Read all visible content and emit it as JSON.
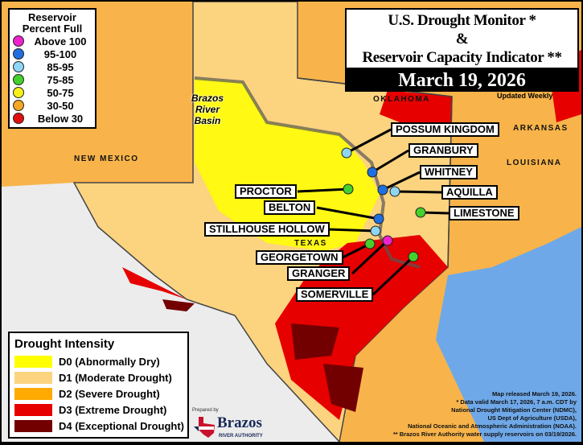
{
  "title": {
    "line1": "U.S. Drought Monitor *",
    "line2": "&",
    "line3": "Reservoir Capacity Indicator **",
    "date": "March 19, 2026",
    "updated": "Updated Weekly"
  },
  "reservoir_legend": {
    "title_line1": "Reservoir",
    "title_line2": "Percent Full",
    "items": [
      {
        "label": "Above 100",
        "color": "#ee22cc"
      },
      {
        "label": "95-100",
        "color": "#1f6fe0"
      },
      {
        "label": "85-95",
        "color": "#8fd6f5"
      },
      {
        "label": "75-85",
        "color": "#44d12c"
      },
      {
        "label": "50-75",
        "color": "#f5f01a"
      },
      {
        "label": "30-50",
        "color": "#f5a623"
      },
      {
        "label": "Below 30",
        "color": "#e01010"
      }
    ]
  },
  "drought_legend": {
    "title": "Drought Intensity",
    "items": [
      {
        "label": "D0 (Abnormally Dry)",
        "color": "#ffff00"
      },
      {
        "label": "D1 (Moderate Drought)",
        "color": "#fcd37f"
      },
      {
        "label": "D2 (Severe Drought)",
        "color": "#ffaa00"
      },
      {
        "label": "D3 (Extreme Drought)",
        "color": "#e60000"
      },
      {
        "label": "D4 (Exceptional Drought)",
        "color": "#730000"
      }
    ]
  },
  "geography": {
    "new_mexico": "NEW MEXICO",
    "oklahoma": "OKLAHOMA",
    "arkansas": "ARKANSAS",
    "louisiana": "LOUISIANA",
    "texas": "TEXAS",
    "basin_line1": "Brazos",
    "basin_line2": "River",
    "basin_line3": "Basin"
  },
  "reservoirs": [
    {
      "name": "POSSUM KINGDOM",
      "level": "85-95",
      "color": "#8fd6f5"
    },
    {
      "name": "GRANBURY",
      "level": "95-100",
      "color": "#1f6fe0"
    },
    {
      "name": "WHITNEY",
      "level": "95-100",
      "color": "#1f6fe0"
    },
    {
      "name": "AQUILLA",
      "level": "85-95",
      "color": "#8fd6f5"
    },
    {
      "name": "LIMESTONE",
      "level": "75-85",
      "color": "#44d12c"
    },
    {
      "name": "PROCTOR",
      "level": "75-85",
      "color": "#44d12c"
    },
    {
      "name": "BELTON",
      "level": "95-100",
      "color": "#1f6fe0"
    },
    {
      "name": "STILLHOUSE HOLLOW",
      "level": "85-95",
      "color": "#8fd6f5"
    },
    {
      "name": "GEORGETOWN",
      "level": "75-85",
      "color": "#44d12c"
    },
    {
      "name": "GRANGER",
      "level": "Above 100",
      "color": "#ee22cc"
    },
    {
      "name": "SOMERVILLE",
      "level": "75-85",
      "color": "#44d12c"
    }
  ],
  "credits": [
    "Map released March 19, 2026.",
    "* Data valid March 17, 2026, 7 a.m. CDT by",
    "National Drought Mitigation Center (NDMC),",
    "US Dept of Agriculture (USDA),",
    "National Oceanic and Atmospheric Administration (NOAA).",
    "** Brazos River Authority water supply reservoirs on 03/19/2026."
  ],
  "logo": {
    "prepared_by": "Prepared by",
    "name": "Brazos",
    "subtitle": "RIVER AUTHORITY"
  }
}
